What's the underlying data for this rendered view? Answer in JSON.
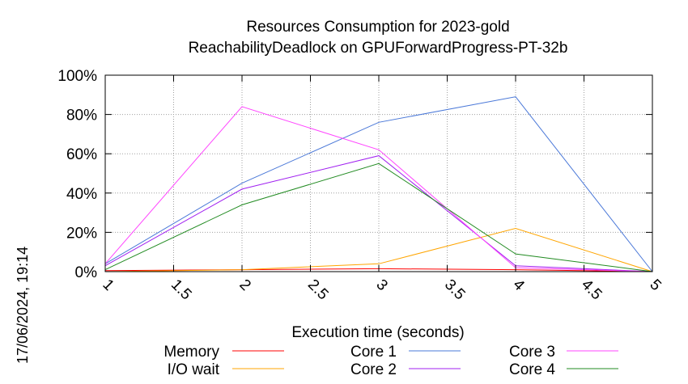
{
  "chart_data": {
    "type": "line",
    "title": "Resources Consumption for 2023-gold",
    "subtitle": "ReachabilityDeadlock on GPUForwardProgress-PT-32b",
    "xlabel": "Execution time (seconds)",
    "ylabel": "",
    "xlim": [
      1,
      5
    ],
    "ylim": [
      0,
      100
    ],
    "x_ticks": [
      "1",
      "1.5",
      "2",
      "2.5",
      "3",
      "3.5",
      "4",
      "4.5",
      "5"
    ],
    "y_ticks": [
      "0%",
      "20%",
      "40%",
      "60%",
      "80%",
      "100%"
    ],
    "grid": true,
    "legend_position": "bottom",
    "timestamp": "17/06/2024, 19:14",
    "series": [
      {
        "name": "Memory",
        "color": "#ff0000",
        "x": [
          1,
          2,
          3,
          4,
          5
        ],
        "values": [
          0.5,
          1,
          1.5,
          1,
          0
        ]
      },
      {
        "name": "I/O wait",
        "color": "#ffa500",
        "x": [
          1,
          2,
          3,
          4,
          5
        ],
        "values": [
          0,
          1,
          4,
          22,
          0
        ]
      },
      {
        "name": "Core 1",
        "color": "#4a78d8",
        "x": [
          1,
          2,
          3,
          4,
          5
        ],
        "values": [
          4,
          45,
          76,
          89,
          0
        ]
      },
      {
        "name": "Core 2",
        "color": "#a020f0",
        "x": [
          1,
          2,
          3,
          4,
          5
        ],
        "values": [
          3,
          42,
          59,
          3,
          0
        ]
      },
      {
        "name": "Core 3",
        "color": "#ff44ff",
        "x": [
          1,
          2,
          3,
          4,
          5
        ],
        "values": [
          4,
          84,
          62,
          2,
          0
        ]
      },
      {
        "name": "Core 4",
        "color": "#228b22",
        "x": [
          1,
          2,
          3,
          4,
          5
        ],
        "values": [
          1,
          34,
          55,
          9,
          0
        ]
      }
    ]
  }
}
